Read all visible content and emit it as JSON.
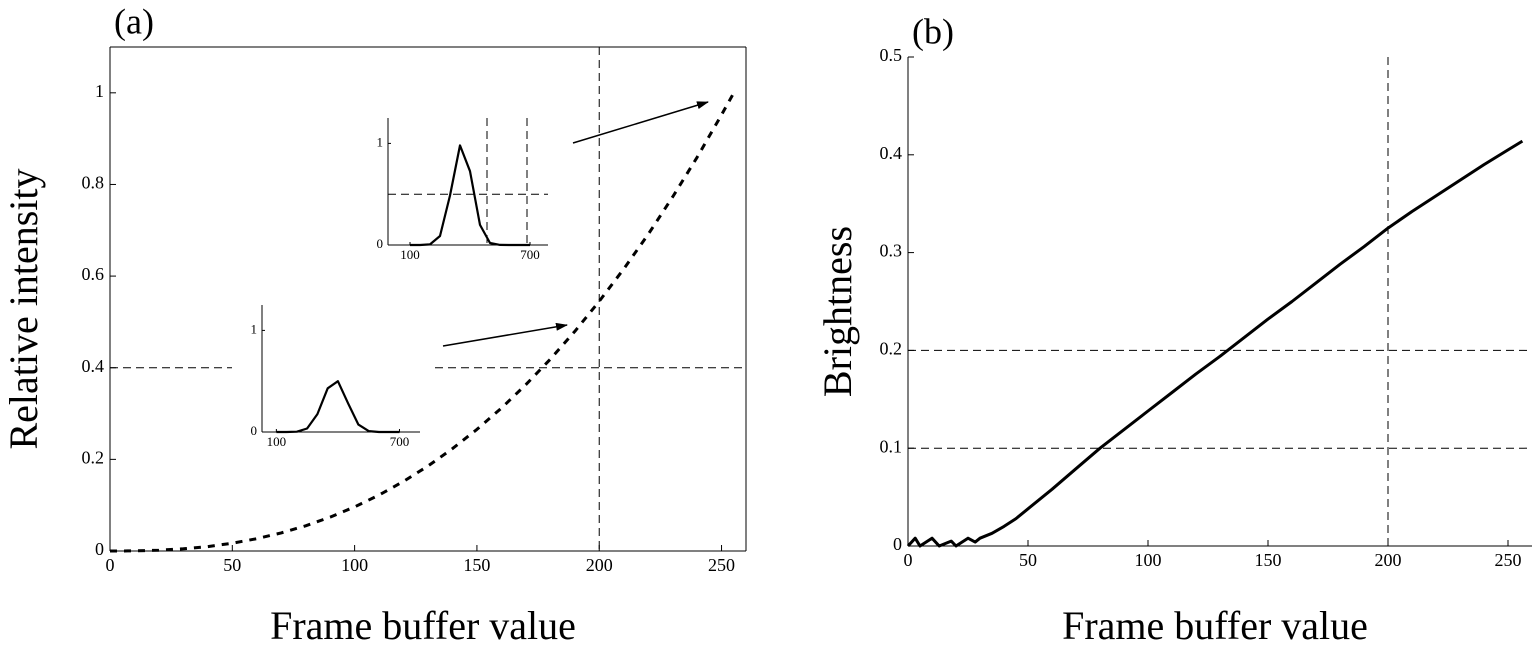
{
  "chart_data": [
    {
      "type": "line",
      "title": "(a)",
      "xlabel": "Frame buffer value",
      "ylabel": "Relative intensity",
      "xlim": [
        0,
        260
      ],
      "ylim": [
        0,
        1.1
      ],
      "xticks": [
        0,
        50,
        100,
        150,
        200,
        250
      ],
      "yticks": [
        0,
        0.2,
        0.4,
        0.6,
        0.8,
        1
      ],
      "hlines": [
        0.4
      ],
      "vlines": [
        200
      ],
      "line_style": "dashed",
      "color": "#000000",
      "frame": true,
      "x": [
        0,
        10,
        20,
        30,
        40,
        50,
        60,
        70,
        80,
        90,
        100,
        110,
        120,
        130,
        140,
        150,
        160,
        170,
        180,
        190,
        200,
        210,
        220,
        230,
        240,
        250,
        255
      ],
      "values": [
        0,
        0.0003,
        0.0017,
        0.0047,
        0.0097,
        0.017,
        0.0269,
        0.0395,
        0.0551,
        0.074,
        0.0963,
        0.1222,
        0.1519,
        0.1856,
        0.2234,
        0.2654,
        0.3119,
        0.3629,
        0.4186,
        0.4792,
        0.5449,
        0.6155,
        0.6913,
        0.7727,
        0.8593,
        0.9517,
        1
      ],
      "insets": [
        {
          "xlim": [
            30,
            800
          ],
          "ylim": [
            0,
            1.25
          ],
          "xticks": [
            100,
            700
          ],
          "yticks": [
            0,
            1
          ],
          "hlines": [],
          "vlines": [],
          "x": [
            100,
            150,
            200,
            250,
            300,
            350,
            400,
            450,
            500,
            550,
            600,
            650,
            700
          ],
          "values": [
            0,
            0.0003,
            0.003,
            0.034,
            0.176,
            0.43,
            0.5,
            0.28,
            0.073,
            0.009,
            0,
            0,
            0
          ]
        },
        {
          "xlim": [
            -10,
            790
          ],
          "ylim": [
            0,
            1.25
          ],
          "xticks": [
            100,
            700
          ],
          "yticks": [
            0,
            1
          ],
          "hlines": [
            0.5
          ],
          "vlines": [
            485,
            685
          ],
          "x": [
            100,
            150,
            200,
            250,
            300,
            350,
            400,
            450,
            500,
            550,
            600,
            650,
            700
          ],
          "values": [
            0,
            0.0001,
            0.006,
            0.089,
            0.487,
            0.98,
            0.726,
            0.198,
            0.02,
            0.001,
            0,
            0,
            0
          ]
        }
      ]
    },
    {
      "type": "line",
      "title": "(b)",
      "xlabel": "Frame buffer value",
      "ylabel": "Brightness",
      "xlim": [
        0,
        260
      ],
      "ylim": [
        0,
        0.5
      ],
      "xticks": [
        0,
        50,
        100,
        150,
        200,
        250
      ],
      "yticks": [
        0,
        0.1,
        0.2,
        0.3,
        0.4,
        0.5
      ],
      "hlines": [
        0.1,
        0.2
      ],
      "vlines": [
        200
      ],
      "line_style": "solid",
      "color": "#000000",
      "frame": false,
      "x": [
        0,
        3,
        5,
        10,
        13,
        18,
        20,
        25,
        28,
        30,
        35,
        40,
        45,
        50,
        60,
        70,
        80,
        100,
        110,
        120,
        130,
        140,
        150,
        160,
        170,
        180,
        190,
        200,
        210,
        220,
        230,
        240,
        250,
        256
      ],
      "values": [
        0,
        0.008,
        0,
        0.008,
        0,
        0.005,
        0,
        0.008,
        0.004,
        0.008,
        0.013,
        0.02,
        0.028,
        0.038,
        0.058,
        0.079,
        0.1,
        0.138,
        0.157,
        0.176,
        0.194,
        0.213,
        0.232,
        0.25,
        0.269,
        0.288,
        0.306,
        0.325,
        0.342,
        0.358,
        0.374,
        0.39,
        0.405,
        0.414
      ]
    }
  ]
}
